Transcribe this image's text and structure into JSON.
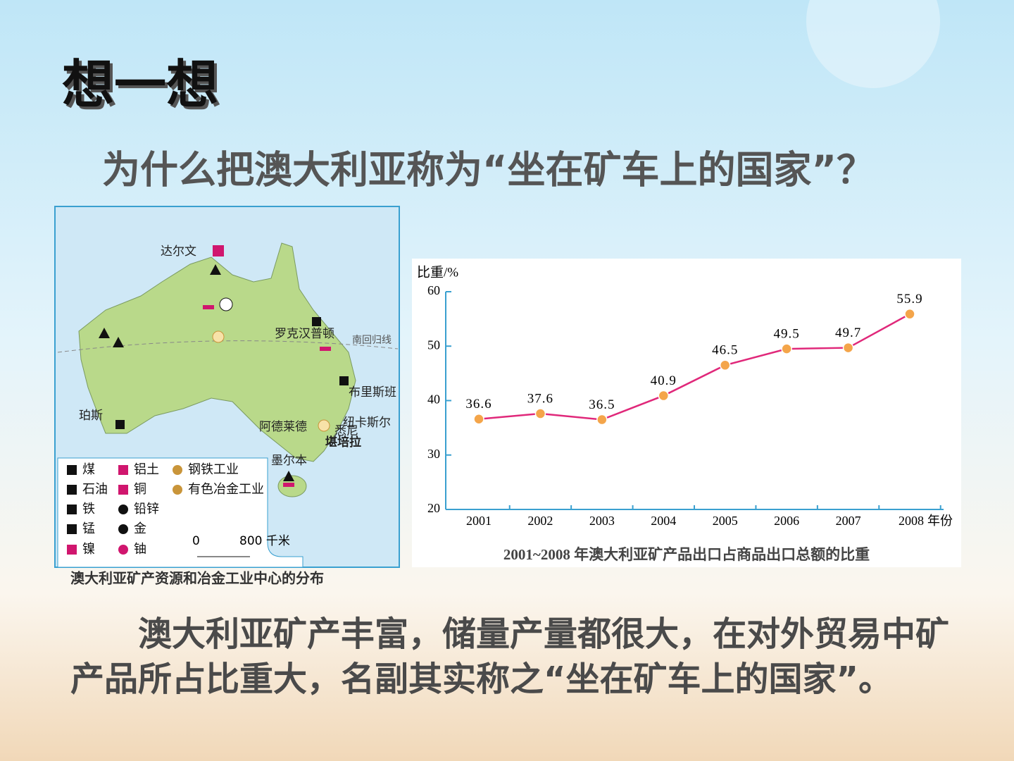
{
  "title": "想一想",
  "question": "为什么把澳大利亚称为“坐在矿车上的国家”？",
  "map": {
    "places": [
      "达尔文",
      "罗克汉普顿",
      "南回归线",
      "布里斯班",
      "纽卡斯尔",
      "悉尼",
      "堪培拉",
      "阿德莱德",
      "珀斯",
      "墨尔本"
    ],
    "legend": [
      "煤",
      "石油",
      "铁",
      "锰",
      "镍",
      "铝土",
      "铜",
      "铅锌",
      "金",
      "铀",
      "钢铁工业",
      "有色冶金工业"
    ],
    "scale": [
      "0",
      "800 千米"
    ],
    "caption": "澳大利亚矿产资源和冶金工业中心的分布"
  },
  "chart_data": {
    "type": "line",
    "title": "2001~2008 年澳大利亚矿产品出口占商品出口总额的比重",
    "y_label": "比重/%",
    "x_label": "年份",
    "categories": [
      "2001",
      "2002",
      "2003",
      "2004",
      "2005",
      "2006",
      "2007",
      "2008"
    ],
    "values": [
      36.6,
      37.6,
      36.5,
      40.9,
      46.5,
      49.5,
      49.7,
      55.9
    ],
    "color": "#e0287a",
    "marker_color": "#f4a54a",
    "ylim": [
      20,
      60
    ],
    "yticks": [
      20,
      30,
      40,
      50,
      60
    ]
  },
  "conclusion": "澳大利亚矿产丰富，储量产量都很大，在对外贸易中矿产品所占比重大，名副其实称之“坐在矿车上的国家”。"
}
